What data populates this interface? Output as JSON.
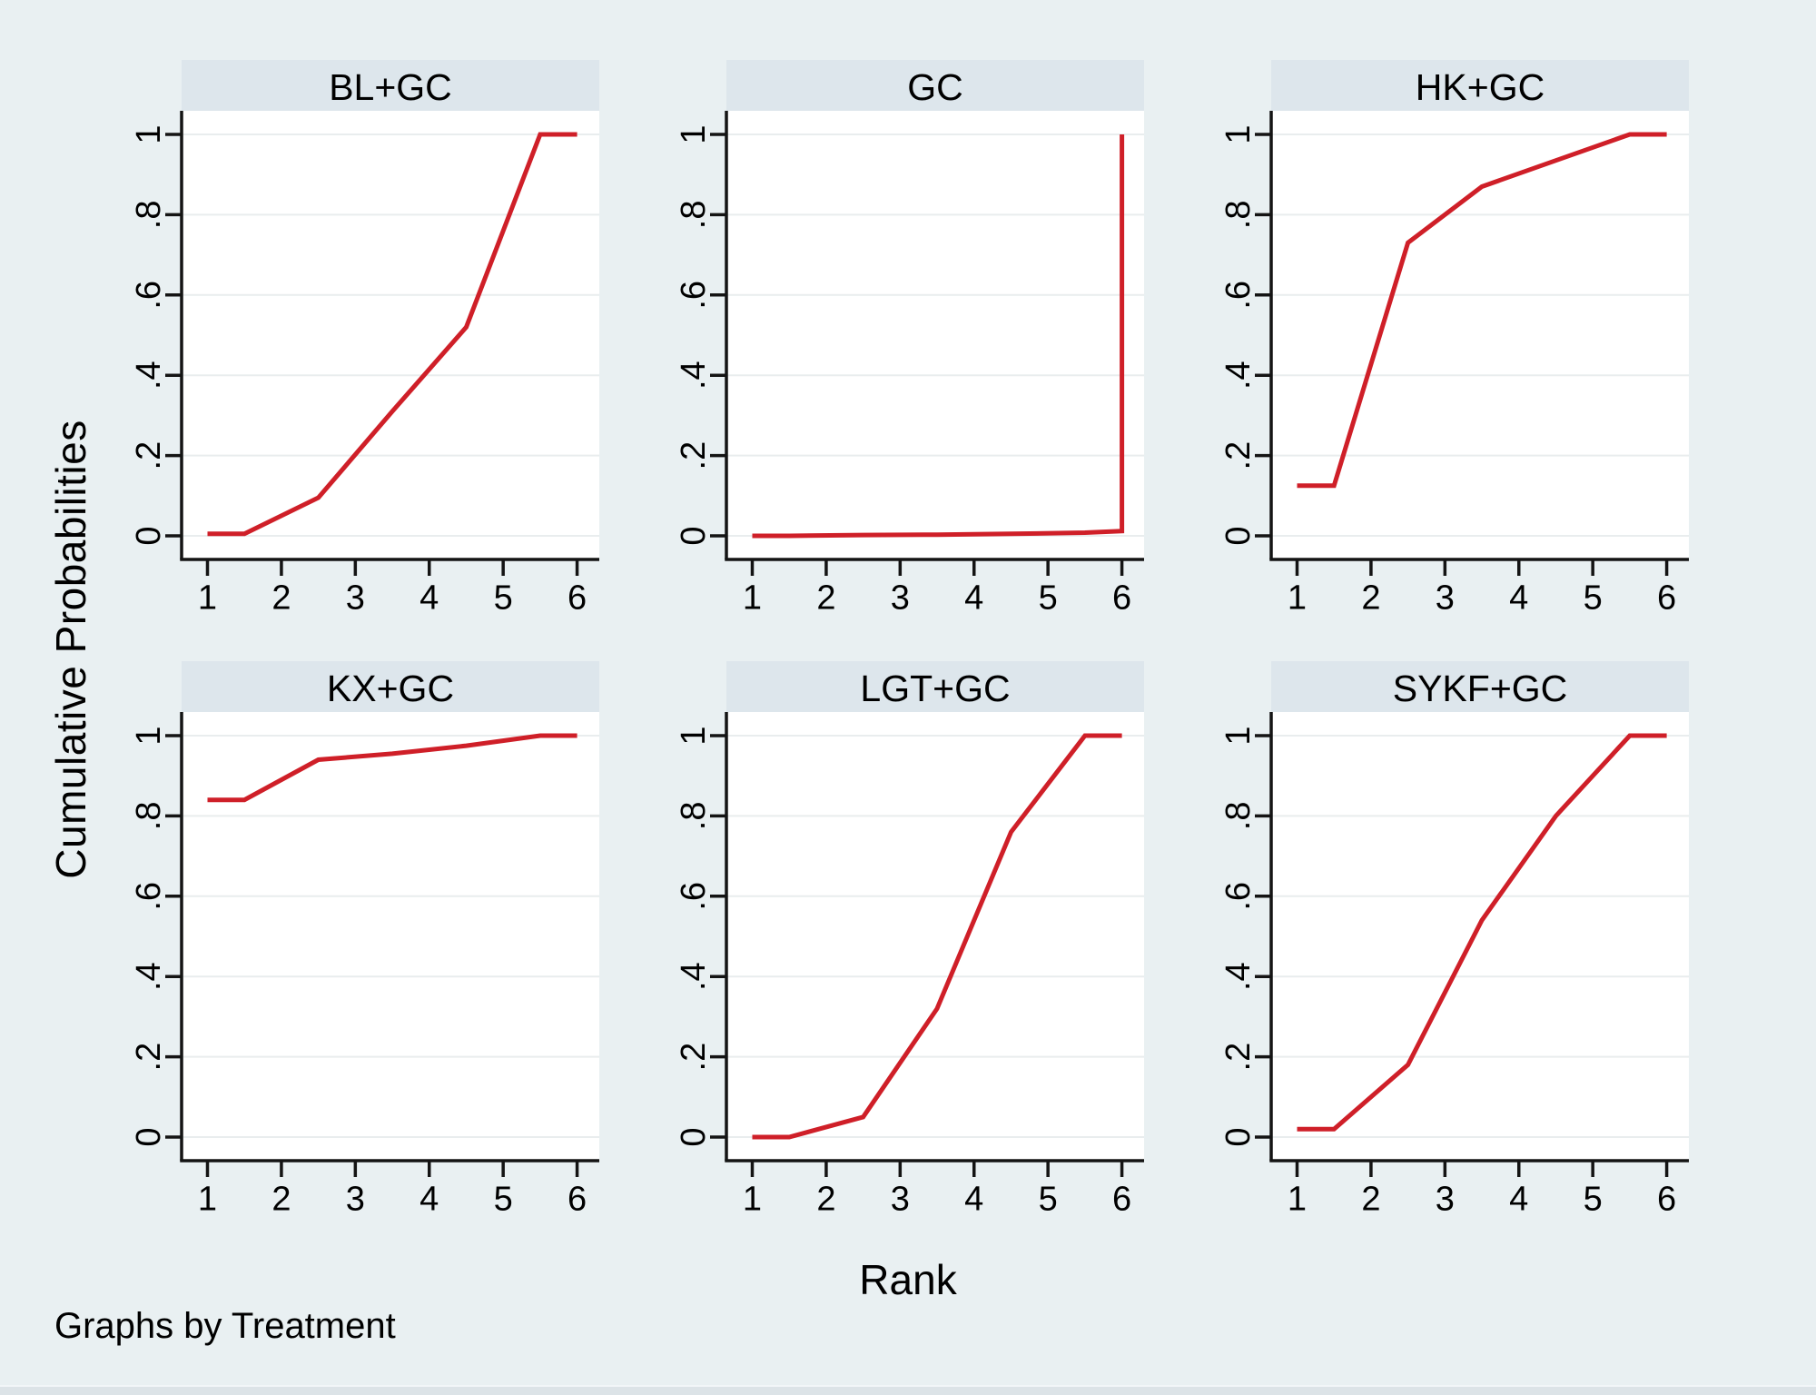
{
  "chart_data": {
    "type": "line",
    "layout": "2x3_facets",
    "facet_label": "Treatment",
    "xlabel": "Rank",
    "ylabel": "Cumulative Probabilities",
    "note": "Graphs by Treatment",
    "x_ticks": [
      1,
      2,
      3,
      4,
      5,
      6
    ],
    "y_ticks": [
      {
        "v": 0,
        "label": "0"
      },
      {
        "v": 0.2,
        "label": ".2"
      },
      {
        "v": 0.4,
        "label": ".4"
      },
      {
        "v": 0.6,
        "label": ".6"
      },
      {
        "v": 0.8,
        "label": ".8"
      },
      {
        "v": 1,
        "label": "1"
      }
    ],
    "xlim": [
      0.65,
      6.3
    ],
    "ylim": [
      -0.06,
      1.06
    ],
    "grid": "horizontal",
    "legend": "none",
    "panels": [
      {
        "title": "BL+GC",
        "points": [
          [
            1,
            0.005
          ],
          [
            1.5,
            0.005
          ],
          [
            2.5,
            0.095
          ],
          [
            3.5,
            0.31
          ],
          [
            4.5,
            0.52
          ],
          [
            5.5,
            1
          ],
          [
            6,
            1
          ]
        ]
      },
      {
        "title": "GC",
        "points": [
          [
            1,
            0
          ],
          [
            1.5,
            0
          ],
          [
            2.5,
            0.002
          ],
          [
            3.5,
            0.003
          ],
          [
            4.5,
            0.005
          ],
          [
            5.5,
            0.008
          ],
          [
            6,
            0.012
          ],
          [
            6,
            1
          ]
        ]
      },
      {
        "title": "HK+GC",
        "points": [
          [
            1,
            0.125
          ],
          [
            1.5,
            0.125
          ],
          [
            2.5,
            0.73
          ],
          [
            3.5,
            0.87
          ],
          [
            4.5,
            0.935
          ],
          [
            5.5,
            1
          ],
          [
            6,
            1
          ]
        ]
      },
      {
        "title": "KX+GC",
        "points": [
          [
            1,
            0.84
          ],
          [
            1.5,
            0.84
          ],
          [
            2.5,
            0.94
          ],
          [
            3.5,
            0.955
          ],
          [
            4.5,
            0.975
          ],
          [
            5.5,
            1
          ],
          [
            6,
            1
          ]
        ]
      },
      {
        "title": "LGT+GC",
        "points": [
          [
            1,
            0
          ],
          [
            1.5,
            0
          ],
          [
            2.5,
            0.05
          ],
          [
            3.5,
            0.32
          ],
          [
            4.5,
            0.76
          ],
          [
            5.5,
            1
          ],
          [
            6,
            1
          ]
        ]
      },
      {
        "title": "SYKF+GC",
        "points": [
          [
            1,
            0.02
          ],
          [
            1.5,
            0.02
          ],
          [
            2.5,
            0.18
          ],
          [
            3.5,
            0.54
          ],
          [
            4.5,
            0.8
          ],
          [
            5.5,
            1
          ],
          [
            6,
            1
          ]
        ]
      }
    ],
    "colors": {
      "page_bg": "#e9f0f2",
      "strip_bg": "#dde6ec",
      "plot_bg": "#ffffff",
      "grid": "#e9edee",
      "axis": "#141414",
      "line": "#cf1f28",
      "text": "#000000"
    }
  }
}
